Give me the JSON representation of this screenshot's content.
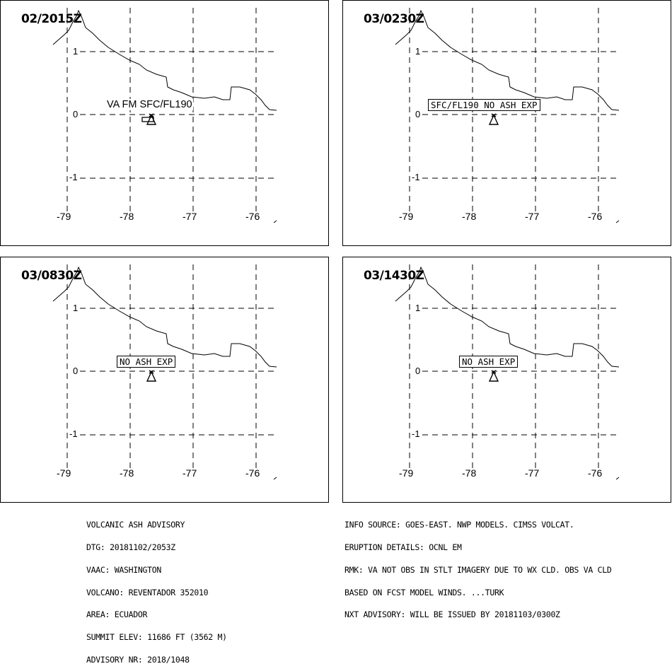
{
  "panels": [
    {
      "time": "02/2015Z",
      "label": "VA FM SFC/FL190",
      "label_style": "plain",
      "ash_box": true
    },
    {
      "time": "03/0230Z",
      "label": "SFC/FL190 NO ASH EXP",
      "label_style": "box",
      "ash_box": false
    },
    {
      "time": "03/0830Z",
      "label": "NO ASH EXP",
      "label_style": "box",
      "ash_box": false
    },
    {
      "time": "03/1430Z",
      "label": "NO ASH EXP",
      "label_style": "box",
      "ash_box": false
    }
  ],
  "map": {
    "lat_ticks": [
      "1",
      "0",
      "-1"
    ],
    "lon_ticks": [
      "-79",
      "-78",
      "-77",
      "-76"
    ],
    "volcano_icon": "volcano-triangle-icon"
  },
  "advisory_left": [
    "VOLCANIC ASH ADVISORY",
    "DTG: 20181102/2053Z",
    "VAAC: WASHINGTON",
    "VOLCANO: REVENTADOR 352010",
    "AREA: ECUADOR",
    "SUMMIT ELEV: 11686 FT (3562 M)",
    "ADVISORY NR: 2018/1048"
  ],
  "advisory_right": [
    "INFO SOURCE: GOES-EAST. NWP MODELS. CIMSS VOLCAT.",
    "ERUPTION DETAILS: OCNL EM",
    "RMK: VA NOT OBS IN STLT IMAGERY DUE TO WX CLD. OBS VA CLD",
    "BASED ON FCST MODEL WINDS. ...TURK",
    "NXT ADVISORY: WILL BE ISSUED BY 20181103/0300Z"
  ]
}
